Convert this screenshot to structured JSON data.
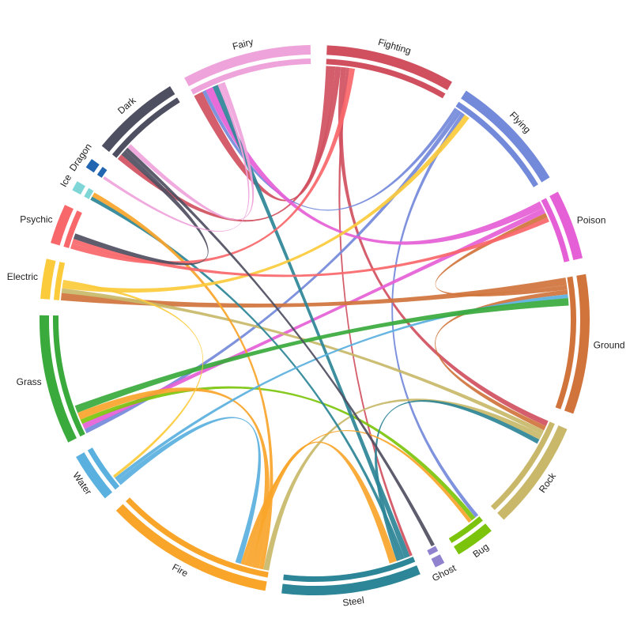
{
  "chart_data": {
    "type": "chord",
    "title": "",
    "groups": [
      {
        "name": "Fighting",
        "color": "#d0505f",
        "value": 13
      },
      {
        "name": "Flying",
        "color": "#7389da",
        "value": 12
      },
      {
        "name": "Poison",
        "color": "#e55fd6",
        "value": 7
      },
      {
        "name": "Ground",
        "color": "#d0743c",
        "value": 14
      },
      {
        "name": "Rock",
        "color": "#c9b86a",
        "value": 11
      },
      {
        "name": "Bug",
        "color": "#7cc40c",
        "value": 4
      },
      {
        "name": "Ghost",
        "color": "#9182d0",
        "value": 1
      },
      {
        "name": "Steel",
        "color": "#2c8697",
        "value": 14
      },
      {
        "name": "Fire",
        "color": "#f9a52a",
        "value": 17
      },
      {
        "name": "Water",
        "color": "#5ab0de",
        "value": 5
      },
      {
        "name": "Grass",
        "color": "#3aaa3c",
        "value": 13
      },
      {
        "name": "Electric",
        "color": "#fccb3c",
        "value": 4
      },
      {
        "name": "Psychic",
        "color": "#f8676a",
        "value": 4
      },
      {
        "name": "Ice",
        "color": "#7ed6d6",
        "value": 1
      },
      {
        "name": "Dragon",
        "color": "#2265b0",
        "value": 1
      },
      {
        "name": "Dark",
        "color": "#4f4f62",
        "value": 9
      },
      {
        "name": "Fairy",
        "color": "#efa3db",
        "value": 13
      }
    ],
    "links": [
      {
        "source": "Fighting",
        "target": "Fairy",
        "value": 1.0
      },
      {
        "source": "Fighting",
        "target": "Dark",
        "value": 0.6
      },
      {
        "source": "Fighting",
        "target": "Rock",
        "value": 0.6
      },
      {
        "source": "Fighting",
        "target": "Steel",
        "value": 0.3
      },
      {
        "source": "Flying",
        "target": "Fairy",
        "value": 0.4
      },
      {
        "source": "Flying",
        "target": "Grass",
        "value": 0.5
      },
      {
        "source": "Flying",
        "target": "Bug",
        "value": 0.4
      },
      {
        "source": "Poison",
        "target": "Fairy",
        "value": 0.8
      },
      {
        "source": "Poison",
        "target": "Grass",
        "value": 0.6
      },
      {
        "source": "Ground",
        "target": "Electric",
        "value": 0.8
      },
      {
        "source": "Ground",
        "target": "Poison",
        "value": 0.5
      },
      {
        "source": "Ground",
        "target": "Rock",
        "value": 0.5
      },
      {
        "source": "Rock",
        "target": "Electric",
        "value": 0.5
      },
      {
        "source": "Rock",
        "target": "Fire",
        "value": 0.6
      },
      {
        "source": "Bug",
        "target": "Grass",
        "value": 0.5
      },
      {
        "source": "Steel",
        "target": "Fairy",
        "value": 0.6
      },
      {
        "source": "Steel",
        "target": "Ice",
        "value": 0.4
      },
      {
        "source": "Steel",
        "target": "Rock",
        "value": 0.5
      },
      {
        "source": "Fire",
        "target": "Ice",
        "value": 0.5
      },
      {
        "source": "Fire",
        "target": "Grass",
        "value": 0.8
      },
      {
        "source": "Fire",
        "target": "Steel",
        "value": 0.8
      },
      {
        "source": "Fire",
        "target": "Bug",
        "value": 0.4
      },
      {
        "source": "Water",
        "target": "Fire",
        "value": 0.6
      },
      {
        "source": "Water",
        "target": "Ground",
        "value": 0.4
      },
      {
        "source": "Grass",
        "target": "Ground",
        "value": 0.8
      },
      {
        "source": "Electric",
        "target": "Flying",
        "value": 0.6
      },
      {
        "source": "Electric",
        "target": "Water",
        "value": 0.3
      },
      {
        "source": "Psychic",
        "target": "Fighting",
        "value": 0.6
      },
      {
        "source": "Psychic",
        "target": "Poison",
        "value": 0.5
      },
      {
        "source": "Dark",
        "target": "Psychic",
        "value": 0.6
      },
      {
        "source": "Dark",
        "target": "Ghost",
        "value": 0.4
      },
      {
        "source": "Fairy",
        "target": "Dragon",
        "value": 0.3
      },
      {
        "source": "Fairy",
        "target": "Dark",
        "value": 0.5
      }
    ]
  }
}
